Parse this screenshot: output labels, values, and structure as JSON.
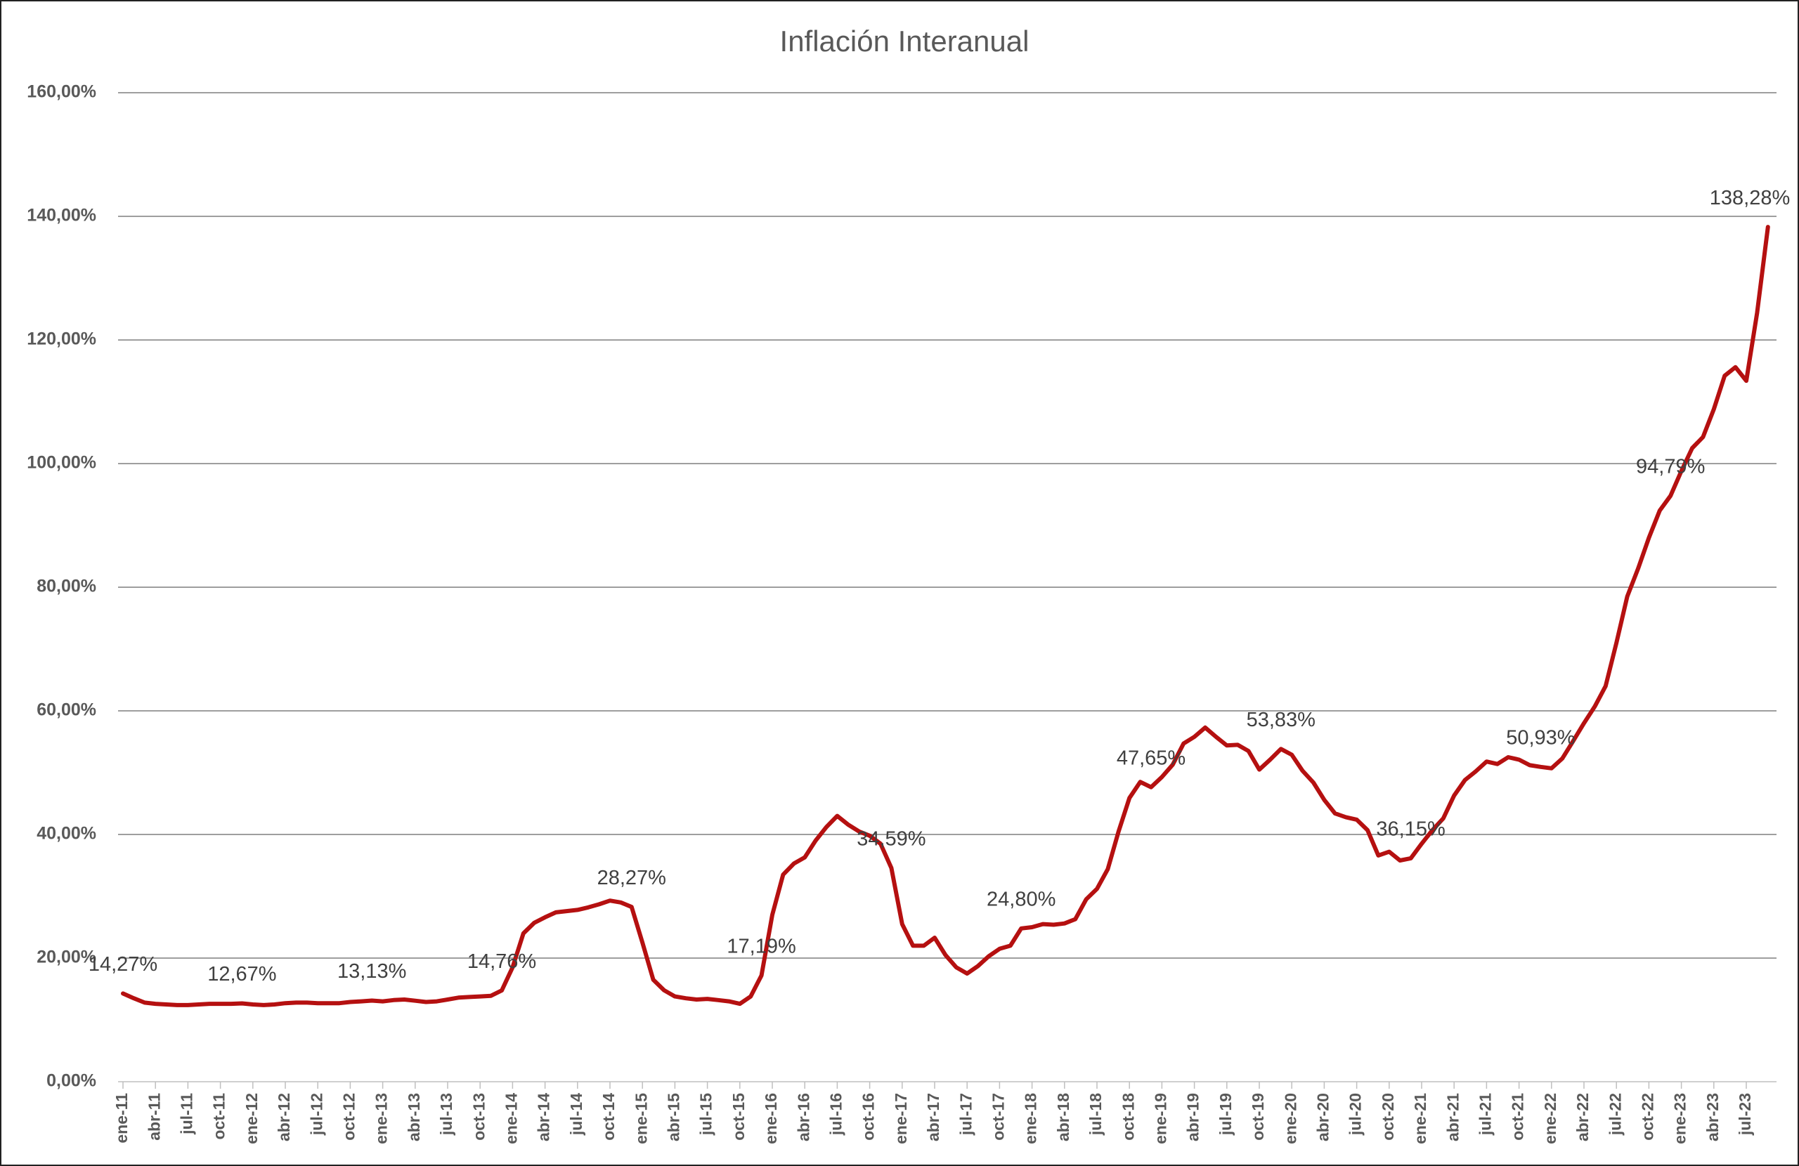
{
  "chart_data": {
    "type": "line",
    "title": "Inflación Interanual",
    "categories": [
      "ene-11",
      null,
      null,
      "abr-11",
      null,
      null,
      "jul-11",
      null,
      null,
      "oct-11",
      null,
      null,
      "ene-12",
      null,
      null,
      "abr-12",
      null,
      null,
      "jul-12",
      null,
      null,
      "oct-12",
      null,
      null,
      "ene-13",
      null,
      null,
      "abr-13",
      null,
      null,
      "jul-13",
      null,
      null,
      "oct-13",
      null,
      null,
      "ene-14",
      null,
      null,
      "abr-14",
      null,
      null,
      "jul-14",
      null,
      null,
      "oct-14",
      null,
      null,
      "ene-15",
      null,
      null,
      "abr-15",
      null,
      null,
      "jul-15",
      null,
      null,
      "oct-15",
      null,
      null,
      "ene-16",
      null,
      null,
      "abr-16",
      null,
      null,
      "jul-16",
      null,
      null,
      "oct-16",
      null,
      null,
      "ene-17",
      null,
      null,
      "abr-17",
      null,
      null,
      "jul-17",
      null,
      null,
      "oct-17",
      null,
      null,
      "ene-18",
      null,
      null,
      "abr-18",
      null,
      null,
      "jul-18",
      null,
      null,
      "oct-18",
      null,
      null,
      "ene-19",
      null,
      null,
      "abr-19",
      null,
      null,
      "jul-19",
      null,
      null,
      "oct-19",
      null,
      null,
      "ene-20",
      null,
      null,
      "abr-20",
      null,
      null,
      "jul-20",
      null,
      null,
      "oct-20",
      null,
      null,
      "ene-21",
      null,
      null,
      "abr-21",
      null,
      null,
      "jul-21",
      null,
      null,
      "oct-21",
      null,
      null,
      "ene-22",
      null,
      null,
      "abr-22",
      null,
      null,
      "jul-22",
      null,
      null,
      "oct-22",
      null,
      null,
      "ene-23",
      null,
      null,
      "abr-23",
      null,
      null,
      "jul-23",
      null,
      null
    ],
    "values": [
      14.27,
      13.5,
      12.8,
      12.6,
      12.5,
      12.4,
      12.4,
      12.5,
      12.6,
      12.6,
      12.6,
      12.67,
      12.5,
      12.4,
      12.5,
      12.7,
      12.8,
      12.8,
      12.7,
      12.7,
      12.7,
      12.9,
      13.0,
      13.13,
      13.0,
      13.2,
      13.3,
      13.1,
      12.9,
      13.0,
      13.3,
      13.6,
      13.7,
      13.8,
      13.9,
      14.76,
      18.5,
      24.0,
      25.7,
      26.6,
      27.4,
      27.6,
      27.8,
      28.2,
      28.7,
      29.3,
      29.0,
      28.27,
      22.5,
      16.5,
      14.8,
      13.8,
      13.5,
      13.3,
      13.4,
      13.2,
      13.0,
      12.6,
      13.8,
      17.19,
      27.0,
      33.5,
      35.3,
      36.3,
      39.0,
      41.2,
      43.0,
      41.6,
      40.5,
      39.8,
      38.5,
      34.59,
      25.5,
      22.0,
      22.0,
      23.3,
      20.5,
      18.5,
      17.5,
      18.7,
      20.3,
      21.5,
      22.0,
      24.8,
      25.0,
      25.5,
      25.4,
      25.6,
      26.3,
      29.5,
      31.2,
      34.4,
      40.5,
      45.9,
      48.5,
      47.65,
      49.3,
      51.3,
      54.7,
      55.8,
      57.3,
      55.8,
      54.4,
      54.5,
      53.5,
      50.5,
      52.1,
      53.83,
      52.9,
      50.3,
      48.4,
      45.6,
      43.4,
      42.8,
      42.4,
      40.7,
      36.6,
      37.2,
      35.8,
      36.15,
      38.5,
      40.7,
      42.6,
      46.3,
      48.8,
      50.2,
      51.8,
      51.4,
      52.5,
      52.1,
      51.2,
      50.93,
      50.7,
      52.3,
      55.1,
      58.0,
      60.7,
      64.0,
      71.0,
      78.5,
      83.0,
      88.0,
      92.4,
      94.79,
      98.8,
      102.5,
      104.3,
      108.8,
      114.2,
      115.6,
      113.4,
      124.4,
      138.28
    ],
    "value_labels": [
      "14,27%",
      null,
      null,
      null,
      null,
      null,
      null,
      null,
      null,
      null,
      null,
      "12,67%",
      null,
      null,
      null,
      null,
      null,
      null,
      null,
      null,
      null,
      null,
      null,
      "13,13%",
      null,
      null,
      null,
      null,
      null,
      null,
      null,
      null,
      null,
      null,
      null,
      "14,76%",
      null,
      null,
      null,
      null,
      null,
      null,
      null,
      null,
      null,
      null,
      null,
      "28,27%",
      null,
      null,
      null,
      null,
      null,
      null,
      null,
      null,
      null,
      null,
      null,
      "17,19%",
      null,
      null,
      null,
      null,
      null,
      null,
      null,
      null,
      null,
      null,
      null,
      "34,59%",
      null,
      null,
      null,
      null,
      null,
      null,
      null,
      null,
      null,
      null,
      null,
      "24,80%",
      null,
      null,
      null,
      null,
      null,
      null,
      null,
      null,
      null,
      null,
      null,
      "47,65%",
      null,
      null,
      null,
      null,
      null,
      null,
      null,
      null,
      null,
      null,
      null,
      "53,83%",
      null,
      null,
      null,
      null,
      null,
      null,
      null,
      null,
      null,
      null,
      null,
      "36,15%",
      null,
      null,
      null,
      null,
      null,
      null,
      null,
      null,
      null,
      null,
      null,
      "50,93%",
      null,
      null,
      null,
      null,
      null,
      null,
      null,
      null,
      null,
      null,
      null,
      "94,79%",
      null,
      null,
      null,
      null,
      null,
      null,
      null,
      null,
      "138,28%"
    ],
    "color": "#b51010",
    "ylim": [
      0,
      160
    ],
    "yticks": [
      {
        "value": 0,
        "label": "0,00%"
      },
      {
        "value": 20,
        "label": "20,00%"
      },
      {
        "value": 40,
        "label": "40,00%"
      },
      {
        "value": 60,
        "label": "60,00%"
      },
      {
        "value": 80,
        "label": "80,00%"
      },
      {
        "value": 100,
        "label": "100,00%"
      },
      {
        "value": 120,
        "label": "120,00%"
      },
      {
        "value": 140,
        "label": "140,00%"
      },
      {
        "value": 160,
        "label": "160,00%"
      }
    ],
    "grid": true
  }
}
